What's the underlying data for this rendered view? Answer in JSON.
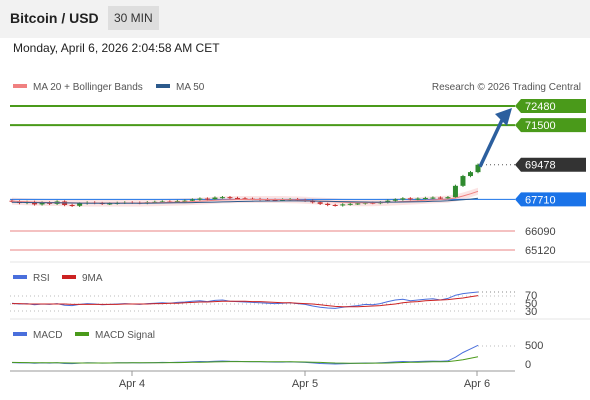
{
  "header": {
    "title": "Bitcoin / USD",
    "interval": "30 MIN"
  },
  "timestamp": "Monday, April 6, 2026 2:04:58 AM CET",
  "main_legend": {
    "ma20": "MA 20 + Bollinger Bands",
    "ma50": "MA 50",
    "copyright": "Research © 2026 Trading Central",
    "ma20_color": "#f08080",
    "ma50_color": "#2c5a8c"
  },
  "levels": {
    "resistance_color": "#4a9a1a",
    "pivot_color": "#1a73e8",
    "support_color": "#e05050",
    "current_color": "#333333",
    "items": [
      {
        "label": "72480",
        "value": 72480,
        "kind": "resistance"
      },
      {
        "label": "71500",
        "value": 71500,
        "kind": "resistance"
      },
      {
        "label": "69478",
        "value": 69478,
        "kind": "current"
      },
      {
        "label": "67710",
        "value": 67710,
        "kind": "pivot"
      },
      {
        "label": "66090",
        "value": 66090,
        "kind": "support"
      },
      {
        "label": "65120",
        "value": 65120,
        "kind": "support"
      }
    ]
  },
  "rsi_panel": {
    "legend": {
      "rsi": "RSI",
      "ma": "9MA",
      "rsi_color": "#4a6fdc",
      "ma_color": "#cc2222"
    },
    "ticks": [
      "70",
      "50",
      "30"
    ]
  },
  "macd_panel": {
    "legend": {
      "macd": "MACD",
      "signal": "MACD Signal",
      "macd_color": "#4a6fdc",
      "signal_color": "#4a9a1a"
    },
    "ticks": [
      "500",
      "0"
    ]
  },
  "x_axis": {
    "labels": [
      "Apr 4",
      "Apr 5",
      "Apr 6"
    ]
  },
  "chart_data": {
    "type": "line",
    "candles_close": [
      67600,
      67520,
      67580,
      67450,
      67550,
      67480,
      67600,
      67420,
      67380,
      67500,
      67550,
      67520,
      67480,
      67500,
      67530,
      67550,
      67540,
      67520,
      67560,
      67580,
      67600,
      67590,
      67620,
      67640,
      67700,
      67750,
      67720,
      67800,
      67820,
      67780,
      67760,
      67740,
      67730,
      67710,
      67690,
      67680,
      67700,
      67720,
      67680,
      67640,
      67560,
      67480,
      67420,
      67400,
      67450,
      67480,
      67500,
      67540,
      67520,
      67560,
      67640,
      67700,
      67760,
      67720,
      67750,
      67780,
      67800,
      67760,
      67820,
      68400,
      68900,
      69100,
      69478
    ],
    "ma20": [
      67620,
      67600,
      67590,
      67570,
      67560,
      67550,
      67550,
      67540,
      67530,
      67520,
      67520,
      67520,
      67520,
      67520,
      67520,
      67520,
      67520,
      67520,
      67530,
      67540,
      67550,
      67560,
      67570,
      67580,
      67600,
      67620,
      67640,
      67660,
      67680,
      67690,
      67700,
      67700,
      67700,
      67700,
      67700,
      67700,
      67700,
      67690,
      67680,
      67660,
      67640,
      67620,
      67600,
      67580,
      67560,
      67550,
      67540,
      67540,
      67540,
      67550,
      67560,
      67580,
      67600,
      67620,
      67640,
      67660,
      67680,
      67700,
      67720,
      67780,
      67880,
      67990,
      68120
    ],
    "ma50": [
      67560,
      67555,
      67550,
      67545,
      67540,
      67535,
      67530,
      67525,
      67520,
      67515,
      67512,
      67510,
      67508,
      67506,
      67505,
      67505,
      67506,
      67508,
      67510,
      67515,
      67520,
      67525,
      67530,
      67538,
      67545,
      67552,
      67560,
      67570,
      67580,
      67590,
      67598,
      67605,
      67612,
      67618,
      67622,
      67625,
      67627,
      67628,
      67628,
      67626,
      67622,
      67616,
      67608,
      67600,
      67592,
      67585,
      67578,
      67572,
      67568,
      67566,
      67566,
      67568,
      67572,
      67578,
      67586,
      67596,
      67608,
      67620,
      67635,
      67660,
      67690,
      67720,
      67760
    ],
    "rsi": [
      52,
      50,
      51,
      48,
      50,
      49,
      51,
      47,
      46,
      49,
      51,
      50,
      48,
      49,
      50,
      51,
      50,
      49,
      51,
      52,
      53,
      52,
      54,
      55,
      57,
      58,
      56,
      59,
      60,
      57,
      56,
      55,
      54,
      53,
      52,
      51,
      52,
      53,
      51,
      49,
      45,
      42,
      40,
      39,
      42,
      44,
      46,
      49,
      48,
      51,
      56,
      60,
      62,
      58,
      60,
      62,
      63,
      60,
      64,
      72,
      76,
      78,
      80
    ],
    "rsi_ma": [
      51,
      51,
      50,
      50,
      50,
      50,
      50,
      50,
      49,
      49,
      49,
      49,
      49,
      49,
      49,
      50,
      50,
      50,
      50,
      51,
      51,
      52,
      52,
      53,
      54,
      55,
      55,
      56,
      57,
      57,
      57,
      57,
      56,
      56,
      55,
      54,
      53,
      53,
      52,
      51,
      50,
      48,
      46,
      44,
      43,
      43,
      43,
      44,
      45,
      46,
      48,
      50,
      53,
      55,
      56,
      58,
      59,
      60,
      61,
      63,
      65,
      68,
      71
    ],
    "macd": [
      40,
      30,
      35,
      20,
      30,
      25,
      35,
      15,
      10,
      25,
      35,
      30,
      25,
      28,
      32,
      35,
      34,
      30,
      36,
      40,
      44,
      43,
      48,
      52,
      60,
      70,
      66,
      78,
      82,
      76,
      72,
      68,
      64,
      60,
      55,
      52,
      54,
      58,
      52,
      44,
      30,
      15,
      5,
      0,
      8,
      14,
      20,
      28,
      25,
      32,
      45,
      58,
      70,
      64,
      70,
      76,
      80,
      74,
      85,
      190,
      320,
      420,
      520
    ],
    "macd_signal": [
      45,
      42,
      40,
      36,
      35,
      33,
      33,
      30,
      27,
      27,
      28,
      29,
      29,
      29,
      30,
      31,
      32,
      32,
      33,
      34,
      36,
      38,
      40,
      42,
      46,
      51,
      54,
      58,
      63,
      66,
      68,
      68,
      68,
      66,
      64,
      62,
      60,
      60,
      58,
      56,
      51,
      44,
      36,
      29,
      25,
      23,
      22,
      23,
      24,
      26,
      29,
      34,
      41,
      46,
      51,
      56,
      61,
      64,
      68,
      89,
      120,
      160,
      200
    ],
    "level_values": [
      72480,
      71500,
      69478,
      67710,
      66090,
      65120
    ]
  }
}
